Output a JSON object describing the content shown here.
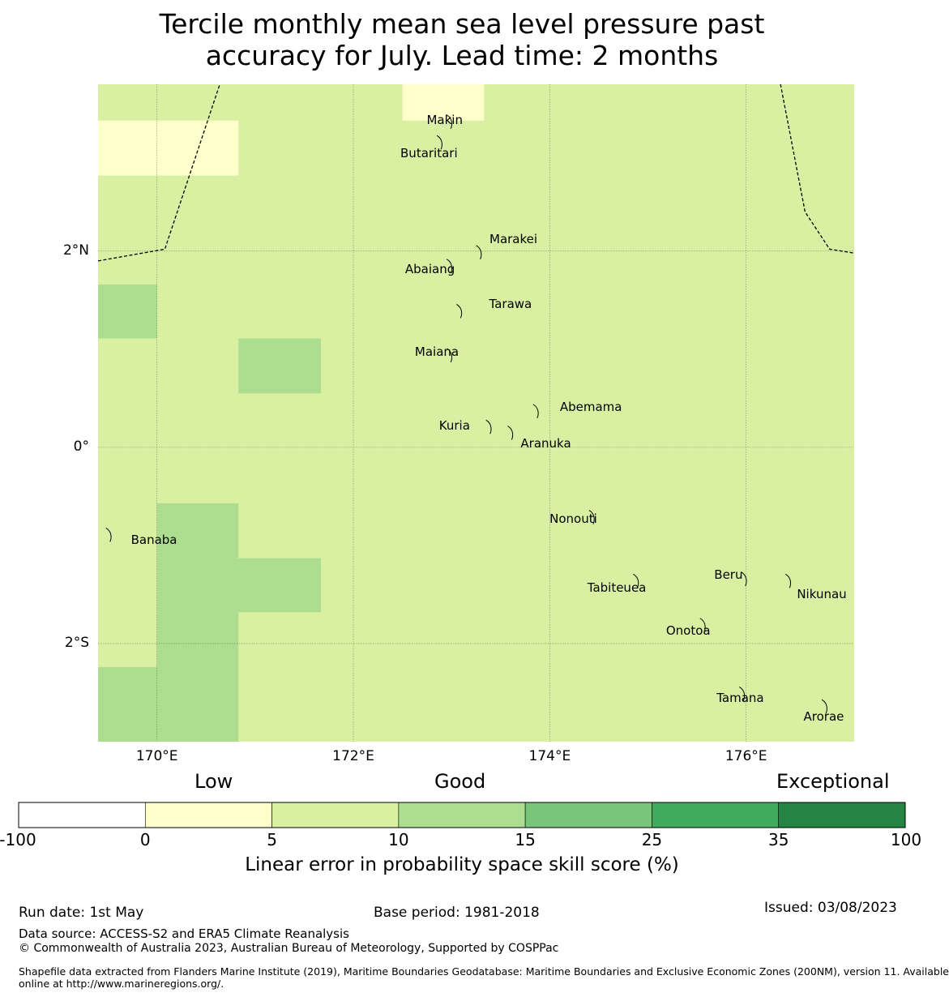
{
  "title_lines": [
    "Tercile monthly mean sea level pressure past",
    "accuracy for July. Lead time: 2 months"
  ],
  "map": {
    "lon_range": [
      169.4,
      177.1
    ],
    "lat_range": [
      -3.0,
      3.7
    ],
    "lat_ticks": [
      {
        "value": 2,
        "label": "2°N"
      },
      {
        "value": 0,
        "label": "0°"
      },
      {
        "value": -2,
        "label": "2°S"
      }
    ],
    "lon_ticks": [
      {
        "value": 170,
        "label": "170°E"
      },
      {
        "value": 172,
        "label": "172°E"
      },
      {
        "value": 174,
        "label": "174°E"
      },
      {
        "value": 176,
        "label": "176°E"
      }
    ],
    "background_color": "#d9f0a3",
    "cells": [
      {
        "lon0": 172.5,
        "lon1": 173.33,
        "lat0": 3.33,
        "lat1": 3.7,
        "color": "#ffffcc"
      },
      {
        "lon0": 169.4,
        "lon1": 170.83,
        "lat0": 2.77,
        "lat1": 3.33,
        "color": "#ffffcc"
      },
      {
        "lon0": 169.4,
        "lon1": 170.0,
        "lat0": 1.11,
        "lat1": 1.66,
        "color": "#addd8e"
      },
      {
        "lon0": 170.83,
        "lon1": 171.67,
        "lat0": 0.55,
        "lat1": 1.11,
        "color": "#addd8e"
      },
      {
        "lon0": 170.0,
        "lon1": 170.83,
        "lat0": -1.13,
        "lat1": -0.57,
        "color": "#addd8e"
      },
      {
        "lon0": 170.0,
        "lon1": 171.67,
        "lat0": -1.68,
        "lat1": -1.13,
        "color": "#addd8e"
      },
      {
        "lon0": 170.0,
        "lon1": 170.83,
        "lat0": -2.24,
        "lat1": -1.68,
        "color": "#addd8e"
      },
      {
        "lon0": 169.4,
        "lon1": 170.83,
        "lat0": -3.0,
        "lat1": -2.24,
        "color": "#addd8e"
      }
    ],
    "eez_lines": [
      [
        [
          169.4,
          1.9
        ],
        [
          170.08,
          2.02
        ],
        [
          170.64,
          3.7
        ]
      ],
      [
        [
          176.35,
          3.7
        ],
        [
          176.6,
          2.4
        ],
        [
          176.85,
          2.02
        ],
        [
          177.1,
          1.98
        ]
      ]
    ],
    "islands": [
      {
        "name": "Makin",
        "lon": 173.0,
        "lat": 3.33,
        "label_lon": 172.93,
        "label_lat": 3.34
      },
      {
        "name": "Butaritari",
        "lon": 172.9,
        "lat": 3.12,
        "label_lon": 172.77,
        "label_lat": 3.0
      },
      {
        "name": "Marakei",
        "lon": 173.3,
        "lat": 2.0,
        "label_lon": 173.63,
        "label_lat": 2.12
      },
      {
        "name": "Abaiang",
        "lon": 173.0,
        "lat": 1.86,
        "label_lon": 172.78,
        "label_lat": 1.82
      },
      {
        "name": "Tarawa",
        "lon": 173.1,
        "lat": 1.4,
        "label_lon": 173.6,
        "label_lat": 1.46
      },
      {
        "name": "Maiana",
        "lon": 173.0,
        "lat": 0.95,
        "label_lon": 172.85,
        "label_lat": 0.97
      },
      {
        "name": "Abemama",
        "lon": 173.88,
        "lat": 0.38,
        "label_lon": 174.4,
        "label_lat": 0.41
      },
      {
        "name": "Kuria",
        "lon": 173.4,
        "lat": 0.22,
        "label_lon": 173.03,
        "label_lat": 0.22
      },
      {
        "name": "Aranuka",
        "lon": 173.62,
        "lat": 0.16,
        "label_lon": 173.96,
        "label_lat": 0.04
      },
      {
        "name": "Nonouti",
        "lon": 174.45,
        "lat": -0.7,
        "label_lon": 174.24,
        "label_lat": -0.73
      },
      {
        "name": "Banaba",
        "lon": 169.53,
        "lat": -0.88,
        "label_lon": 169.97,
        "label_lat": -0.94
      },
      {
        "name": "Tabiteuea",
        "lon": 174.9,
        "lat": -1.35,
        "label_lon": 174.68,
        "label_lat": -1.43
      },
      {
        "name": "Beru",
        "lon": 176.0,
        "lat": -1.33,
        "label_lon": 175.82,
        "label_lat": -1.3
      },
      {
        "name": "Nikunau",
        "lon": 176.45,
        "lat": -1.35,
        "label_lon": 176.77,
        "label_lat": -1.5
      },
      {
        "name": "Onotoa",
        "lon": 175.58,
        "lat": -1.8,
        "label_lon": 175.41,
        "label_lat": -1.87
      },
      {
        "name": "Tamana",
        "lon": 175.98,
        "lat": -2.5,
        "label_lon": 175.94,
        "label_lat": -2.55
      },
      {
        "name": "Arorae",
        "lon": 176.82,
        "lat": -2.63,
        "label_lon": 176.79,
        "label_lat": -2.74
      }
    ]
  },
  "colorbar": {
    "categories": [
      "Low",
      "Good",
      "Exceptional"
    ],
    "segments": [
      {
        "from": -100,
        "to": 0,
        "color": "#ffffff"
      },
      {
        "from": 0,
        "to": 5,
        "color": "#ffffcc"
      },
      {
        "from": 5,
        "to": 10,
        "color": "#d9f0a3"
      },
      {
        "from": 10,
        "to": 15,
        "color": "#addd8e"
      },
      {
        "from": 15,
        "to": 25,
        "color": "#78c679"
      },
      {
        "from": 25,
        "to": 35,
        "color": "#41ab5d"
      },
      {
        "from": 35,
        "to": 100,
        "color": "#238443"
      }
    ],
    "tick_labels": [
      "-100",
      "0",
      "5",
      "10",
      "15",
      "25",
      "35",
      "100"
    ],
    "label": "Linear error in probability space skill score (%)"
  },
  "footer": {
    "run_date": "Run date: 1st May",
    "base_period": "Base period: 1981-2018",
    "issued": "Issued: 03/08/2023",
    "data_source": "Data source: ACCESS-S2 and ERA5 Climate Reanalysis",
    "copyright": "© Commonwealth of Australia 2023, Australian Bureau of Meteorology, Supported by COSPPac",
    "shapefile_line1": "Shapefile data extracted from Flanders Marine Institute (2019), Maritime Boundaries Geodatabase: Maritime Boundaries and Exclusive Economic Zones (200NM), version 11. Available",
    "shapefile_line2": "online at http://www.marineregions.org/."
  }
}
